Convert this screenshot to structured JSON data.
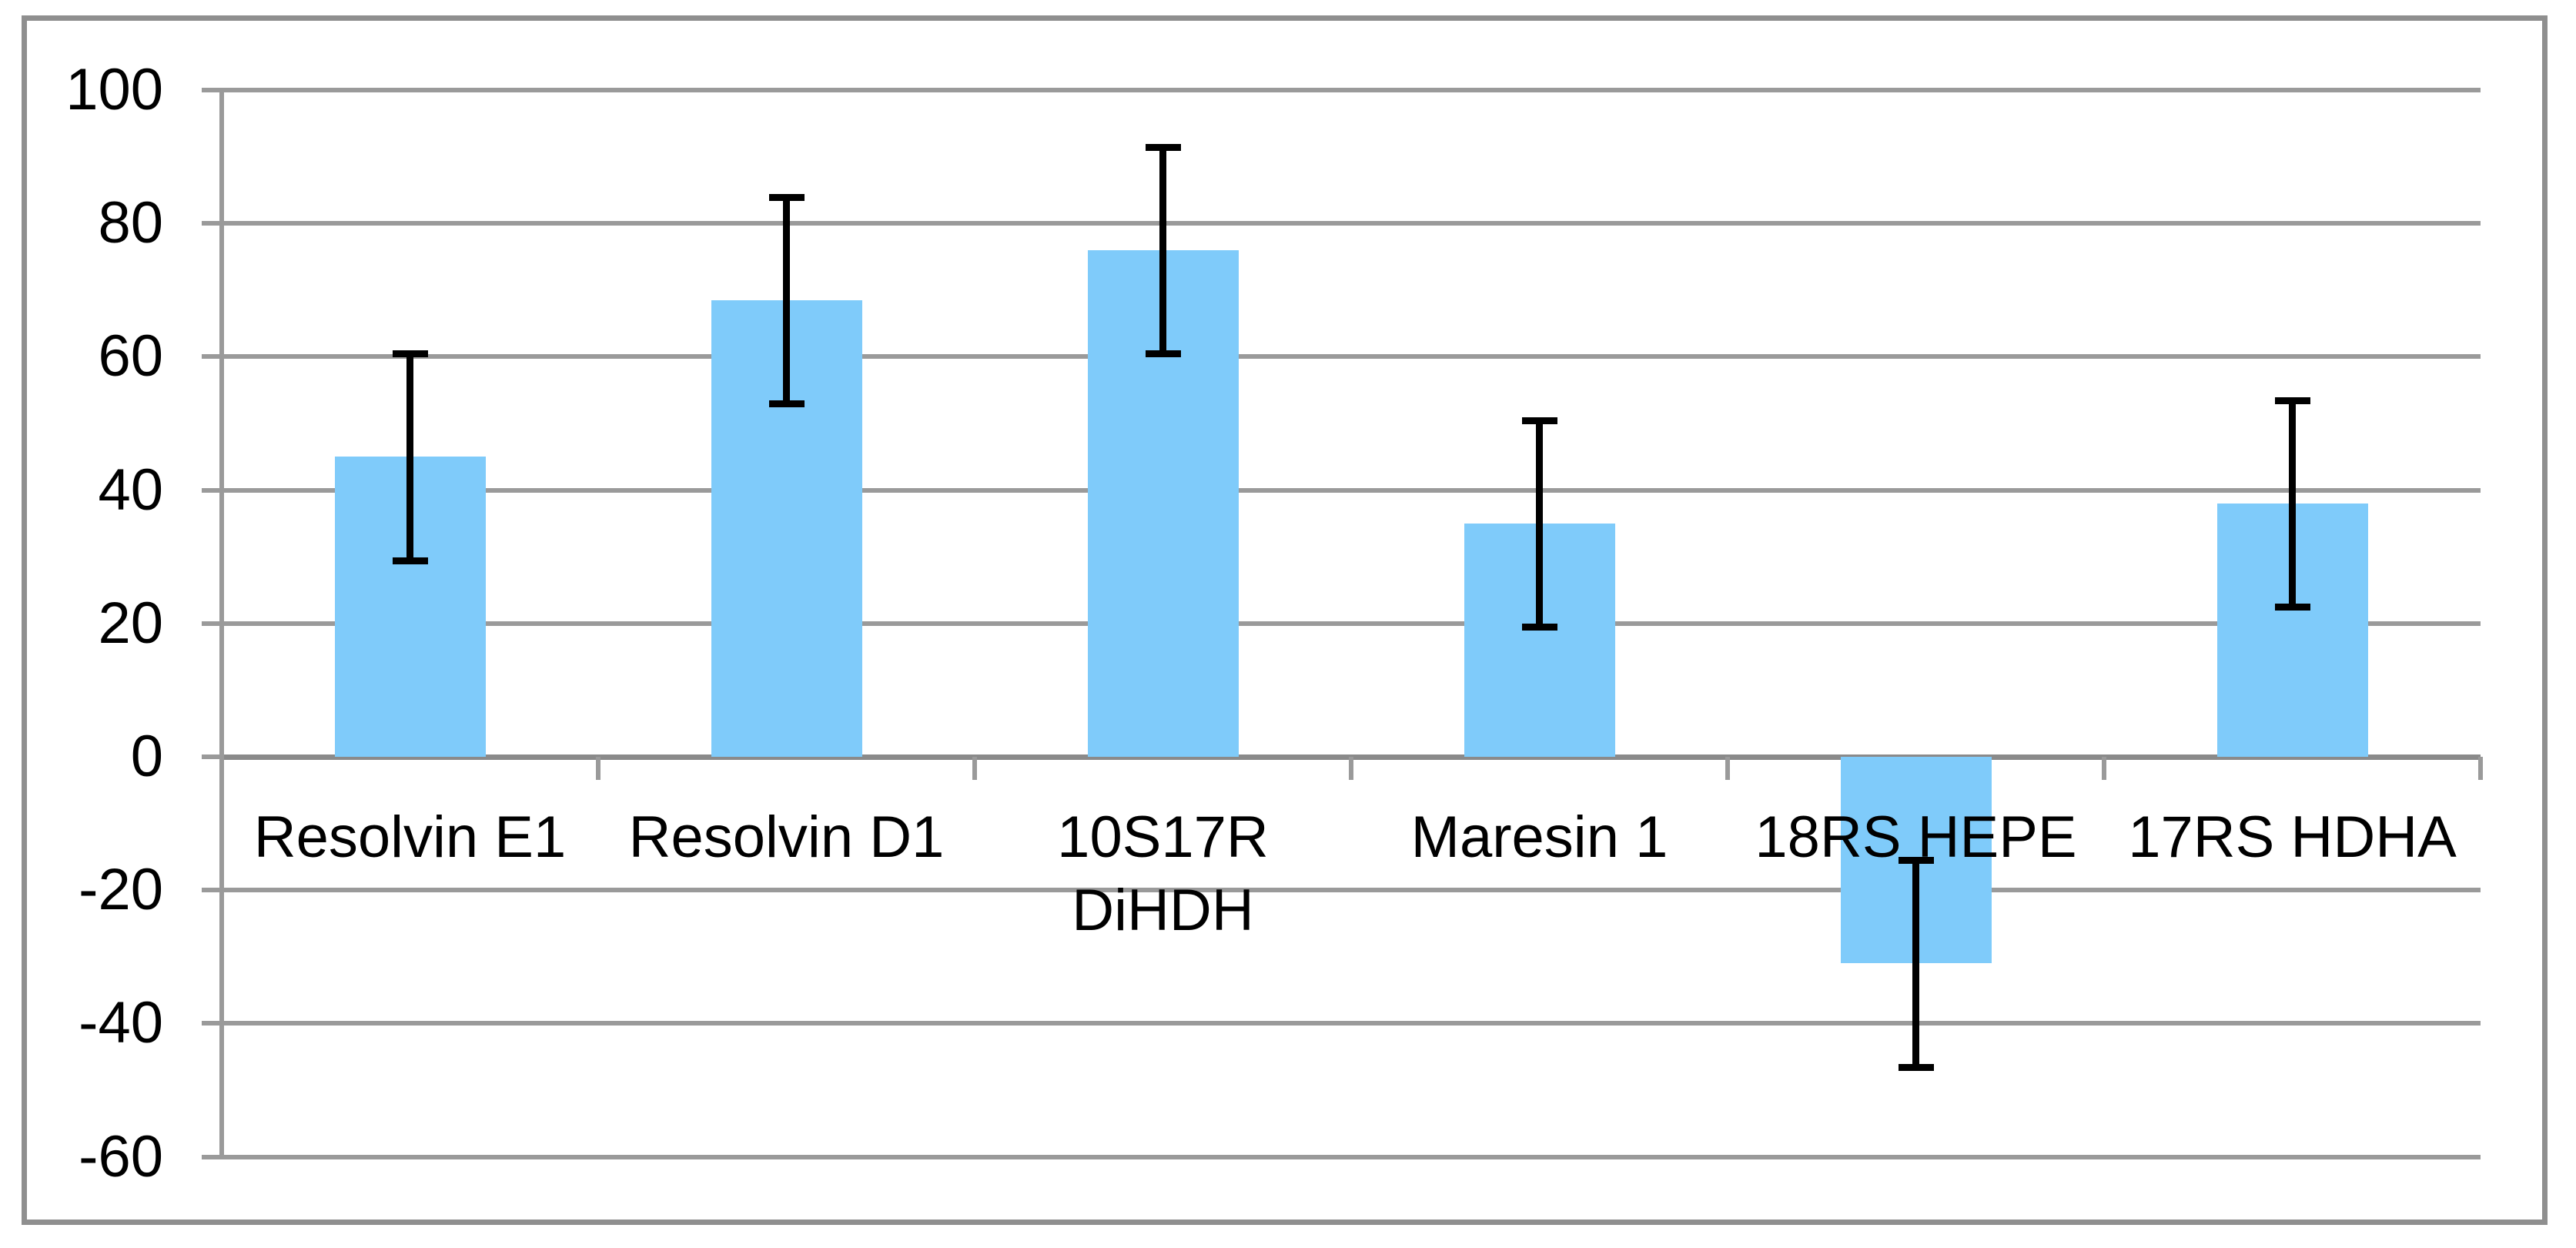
{
  "chart_data": {
    "type": "bar",
    "title": "",
    "xlabel": "",
    "ylabel": "",
    "categories": [
      "Resolvin E1",
      "Resolvin D1",
      "10S17R DiHDH",
      "Maresin 1",
      "18RS HEPE",
      "17RS HDHA"
    ],
    "category_lines": [
      [
        "Resolvin E1"
      ],
      [
        "Resolvin D1"
      ],
      [
        "10S17R",
        "DiHDH"
      ],
      [
        "Maresin 1"
      ],
      [
        "18RS HEPE"
      ],
      [
        "17RS HDHA"
      ]
    ],
    "series": [
      {
        "name": "",
        "values": [
          45,
          68.5,
          76,
          35,
          -31,
          38
        ],
        "error_bars": [
          15.5,
          15.5,
          15.5,
          15.5,
          15.5,
          15.5
        ]
      }
    ],
    "y_ticks": [
      100,
      80,
      60,
      40,
      20,
      0,
      -20,
      -40,
      -60
    ],
    "y_tick_labels": [
      "100",
      "80",
      "60",
      "40",
      "20",
      "0",
      "-20",
      "-40",
      "-60"
    ],
    "ylim": [
      -60,
      100
    ],
    "grid": true,
    "legend": false,
    "colors": {
      "bar_fill": "#7fcbfa",
      "gridline": "#9a9a9a",
      "frame": "#8f8f8f",
      "error_bar": "#000000",
      "text": "#000000"
    }
  }
}
